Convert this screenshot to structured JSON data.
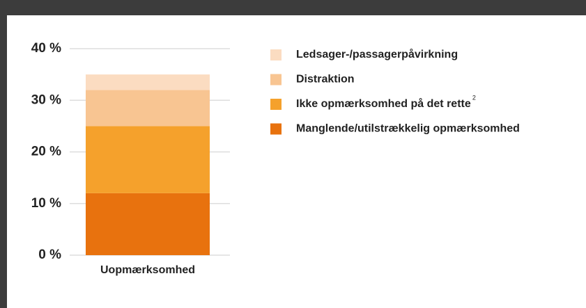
{
  "chart_data": {
    "type": "stacked-bar",
    "categories": [
      "Uopmærksomhed"
    ],
    "series": [
      {
        "name": "Manglende/utilstrækkelig opmærksomhed",
        "color": "#e8720e",
        "values": [
          12
        ]
      },
      {
        "name": "Ikke opmærksomhed på det rette",
        "footnote": "2",
        "color": "#f5a12c",
        "values": [
          13
        ]
      },
      {
        "name": "Distraktion",
        "color": "#f8c592",
        "values": [
          7
        ]
      },
      {
        "name": "Ledsager-/passagerpåvirkning",
        "color": "#fbdcc1",
        "values": [
          3
        ]
      }
    ],
    "ylim": [
      0,
      40
    ],
    "yticks": [
      {
        "value": 0,
        "label": "0 %"
      },
      {
        "value": 10,
        "label": "10 %"
      },
      {
        "value": 20,
        "label": "20 %"
      },
      {
        "value": 30,
        "label": "30 %"
      },
      {
        "value": 40,
        "label": "40 %"
      }
    ],
    "grid": true
  }
}
